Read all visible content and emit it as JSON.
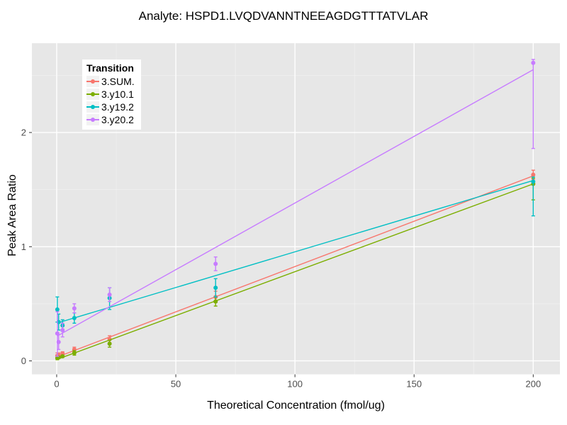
{
  "title": "Analyte: HSPD1.LVQDVANNTNEEAGDGTTTATVLAR",
  "chart_data": {
    "type": "scatter",
    "title": "Analyte: HSPD1.LVQDVANNTNEEAGDGTTTATVLAR",
    "xlabel": "Theoretical Concentration (fmol/ug)",
    "ylabel": "Peak Area Ratio",
    "xlim": [
      -10.4,
      211.2
    ],
    "ylim": [
      -0.118,
      2.782
    ],
    "x_ticks": [
      0,
      50,
      100,
      150,
      200
    ],
    "y_ticks": [
      0,
      1,
      2
    ],
    "x_minor_ticks": [
      25,
      75,
      125,
      175
    ],
    "y_minor_ticks": [
      0.5,
      1.5,
      2.5
    ],
    "grid": true,
    "panel_bg": "#e7e7e7",
    "grid_major_color": "#ffffff",
    "grid_minor_color": "#f2f2f2",
    "tick_label_color": "#4d4d4d",
    "legend_title": "Transition",
    "legend_position": "top-left-inside",
    "x": [
      0.27,
      0.82,
      2.47,
      7.41,
      22.2,
      66.7,
      200
    ],
    "series": [
      {
        "name": "3.SUM.",
        "color": "#F8766D",
        "values": [
          0.045,
          0.05,
          0.065,
          0.1,
          0.19,
          0.56,
          1.63
        ],
        "err_lo": [
          0.02,
          0.03,
          0.05,
          0.08,
          0.16,
          0.51,
          1.59
        ],
        "err_hi": [
          0.07,
          0.07,
          0.08,
          0.12,
          0.22,
          0.61,
          1.67
        ],
        "fit": {
          "intercept": 0.032,
          "slope": 0.00794
        }
      },
      {
        "name": "3.y10.1",
        "color": "#7CAE00",
        "values": [
          0.025,
          0.03,
          0.04,
          0.07,
          0.15,
          0.52,
          1.55
        ],
        "err_lo": [
          0.01,
          0.02,
          0.03,
          0.05,
          0.12,
          0.48,
          1.41
        ],
        "err_hi": [
          0.04,
          0.04,
          0.05,
          0.09,
          0.18,
          0.56,
          1.6
        ],
        "fit": {
          "intercept": 0.012,
          "slope": 0.00769
        }
      },
      {
        "name": "3.y19.2",
        "color": "#00BFC4",
        "values": [
          0.45,
          0.34,
          0.31,
          0.375,
          0.55,
          0.64,
          1.57
        ],
        "err_lo": [
          0.34,
          0.27,
          0.26,
          0.33,
          0.45,
          0.56,
          1.27
        ],
        "err_hi": [
          0.56,
          0.41,
          0.36,
          0.42,
          0.64,
          0.72,
          1.61
        ],
        "fit": {
          "intercept": 0.33,
          "slope": 0.00625
        }
      },
      {
        "name": "3.y20.2",
        "color": "#C77CFF",
        "values": [
          0.24,
          0.165,
          0.27,
          0.46,
          0.58,
          0.85,
          2.61
        ],
        "err_lo": [
          0.04,
          0.1,
          0.21,
          0.42,
          0.52,
          0.79,
          1.86
        ],
        "err_hi": [
          0.43,
          0.23,
          0.33,
          0.5,
          0.64,
          0.91,
          2.64
        ],
        "fit": {
          "intercept": 0.215,
          "slope": 0.011675
        }
      }
    ]
  },
  "legend": {
    "title": "Transition",
    "items": [
      {
        "label": "3.SUM.",
        "color": "#F8766D"
      },
      {
        "label": "3.y10.1",
        "color": "#7CAE00"
      },
      {
        "label": "3.y19.2",
        "color": "#00BFC4"
      },
      {
        "label": "3.y20.2",
        "color": "#C77CFF"
      }
    ]
  }
}
